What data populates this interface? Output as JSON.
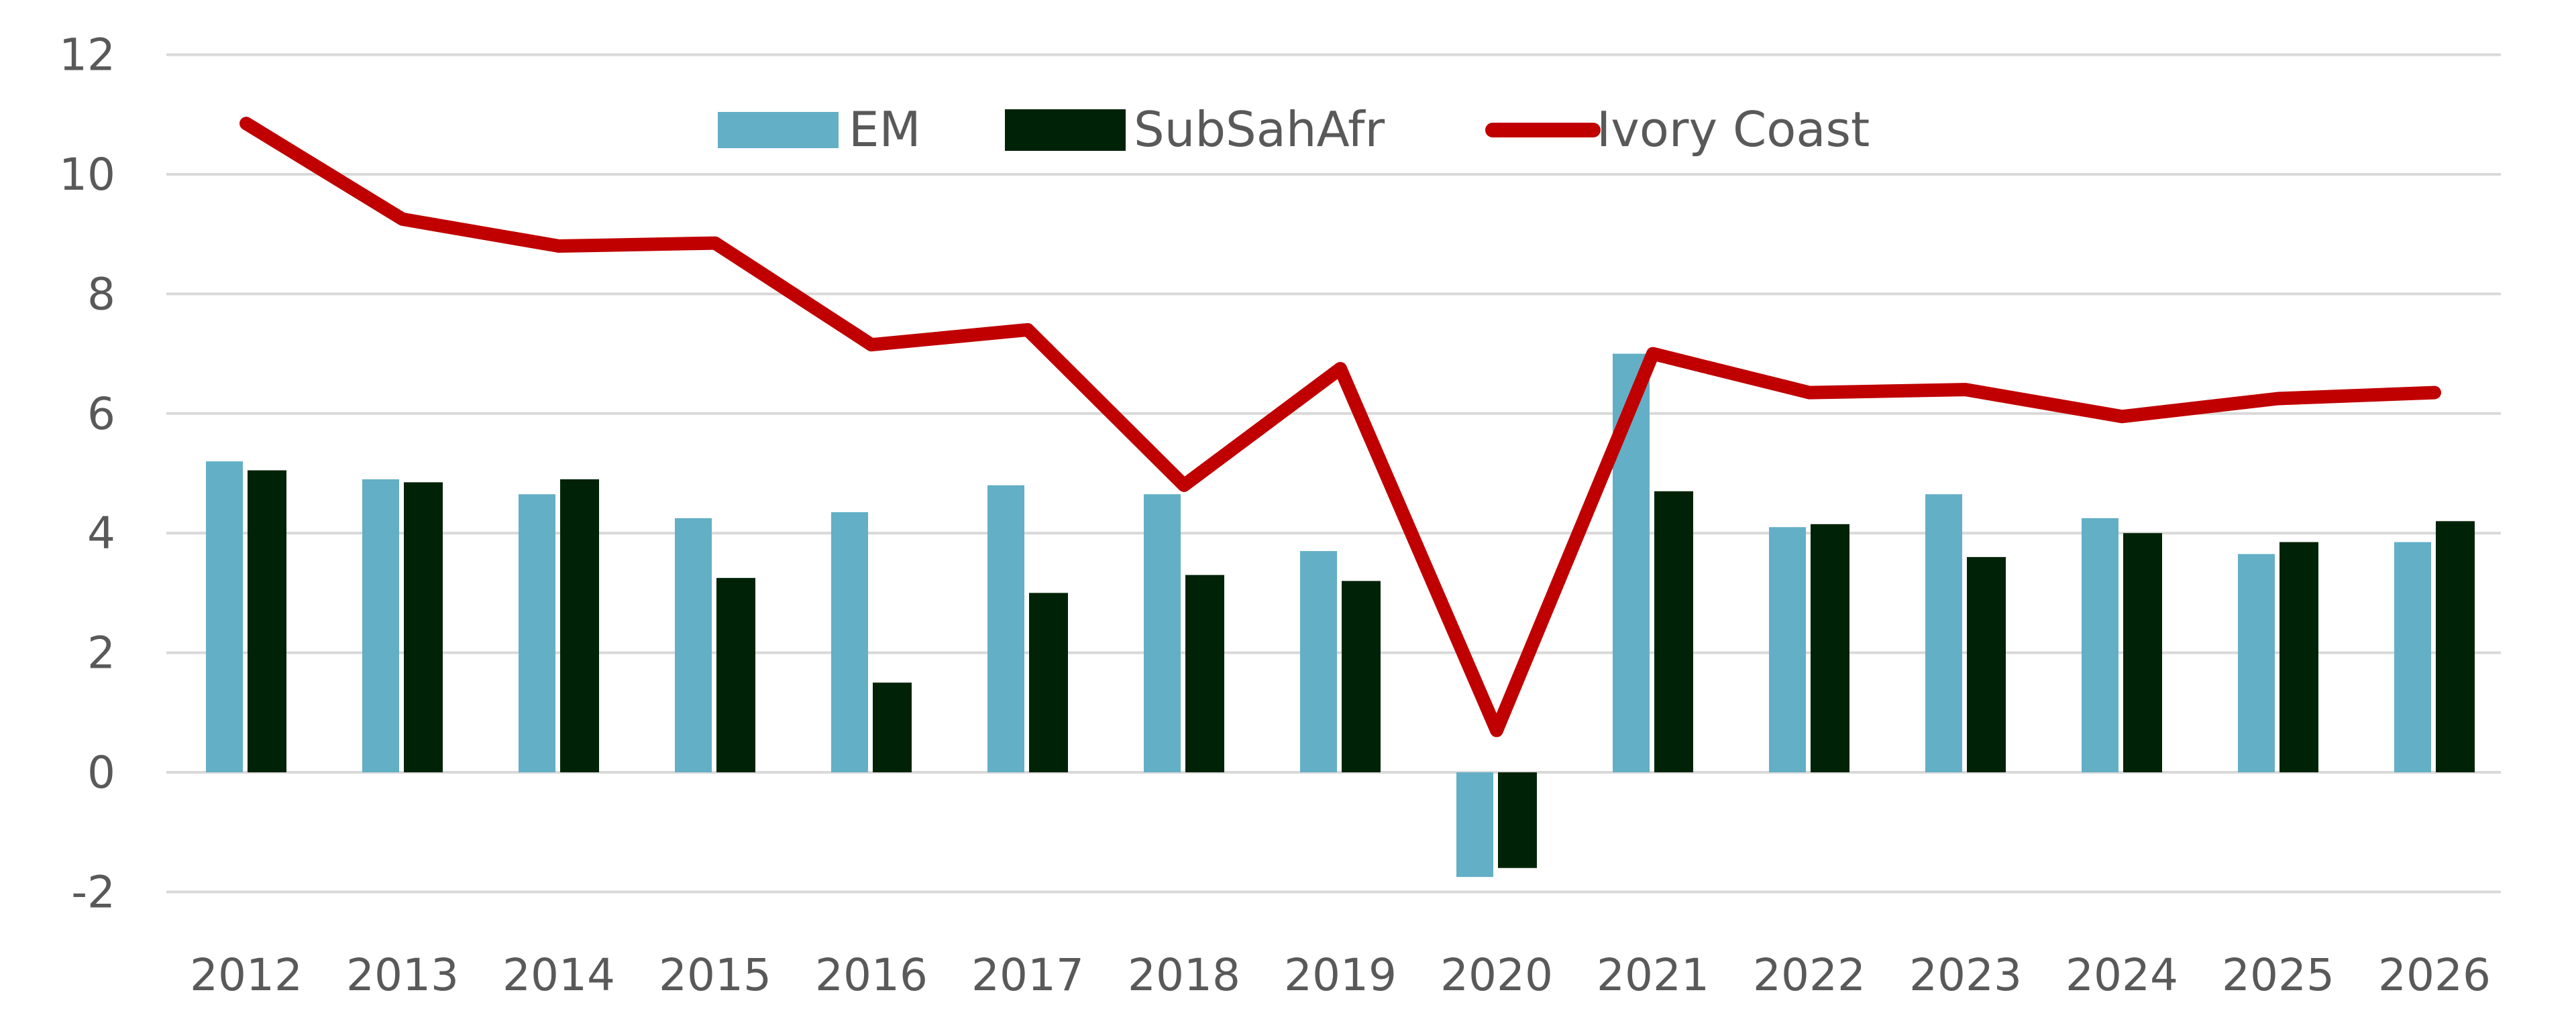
{
  "chart_data": {
    "type": "bar",
    "title": "",
    "xlabel": "",
    "ylabel": "",
    "categories": [
      "2012",
      "2013",
      "2014",
      "2015",
      "2016",
      "2017",
      "2018",
      "2019",
      "2020",
      "2021",
      "2022",
      "2023",
      "2024",
      "2025",
      "2026"
    ],
    "ylim": [
      -2,
      12
    ],
    "yticks": [
      "-2",
      "0",
      "2",
      "4",
      "6",
      "8",
      "10",
      "12"
    ],
    "ytick_values": [
      -2,
      0,
      2,
      4,
      6,
      8,
      10,
      12
    ],
    "grid": true,
    "legend_position": "top-center",
    "series": [
      {
        "name": "EM",
        "type": "bar",
        "color": "#63AFC6",
        "values": [
          5.2,
          4.9,
          4.65,
          4.25,
          4.35,
          4.8,
          4.65,
          3.7,
          -1.75,
          7.0,
          4.1,
          4.65,
          4.25,
          3.65,
          3.85
        ]
      },
      {
        "name": "SubSahAfr",
        "type": "bar",
        "color": "#002307",
        "values": [
          5.05,
          4.85,
          4.9,
          3.25,
          1.5,
          3.0,
          3.3,
          3.2,
          -1.6,
          4.7,
          4.15,
          3.6,
          4.0,
          3.85,
          4.2
        ]
      },
      {
        "name": "Ivory Coast",
        "type": "line",
        "color": "#C00000",
        "values": [
          10.85,
          9.25,
          8.8,
          8.85,
          7.15,
          7.4,
          4.8,
          6.75,
          0.7,
          7.0,
          6.35,
          6.4,
          5.95,
          6.25,
          6.35
        ]
      }
    ]
  }
}
